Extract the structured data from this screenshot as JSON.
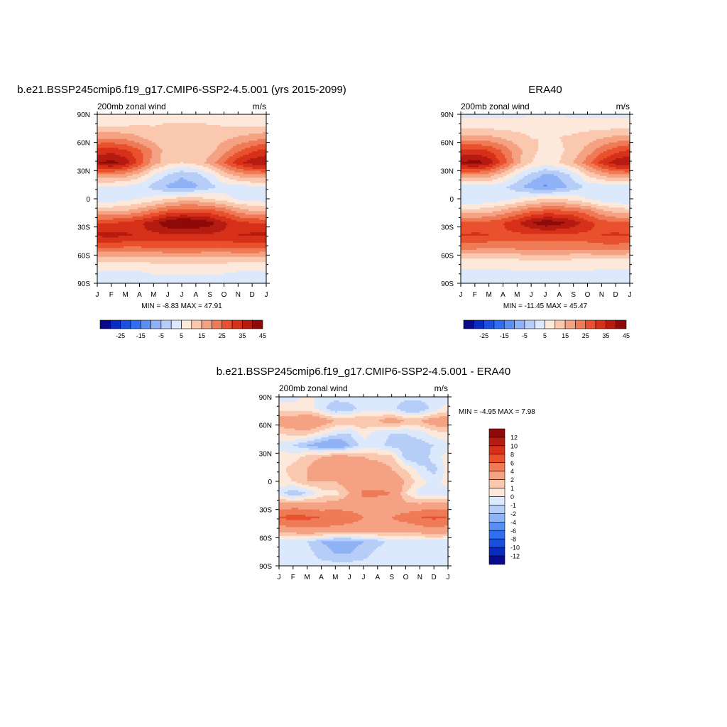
{
  "figure": {
    "panels": [
      {
        "id": "model",
        "title": "b.e21.BSSP245cmip6.f19_g17.CMIP6-SSP2-4.5.001 (yrs 2015-2099)",
        "left_label": "200mb zonal wind",
        "units": "m/s",
        "min_max": "MIN =  -8.83 MAX =  47.91",
        "colorbar_labels": [
          "-25",
          "-15",
          "-5",
          "5",
          "15",
          "25",
          "35",
          "45"
        ]
      },
      {
        "id": "obs",
        "title": "ERA40",
        "left_label": "200mb zonal wind",
        "units": "m/s",
        "min_max": "MIN = -11.45 MAX =  45.47",
        "colorbar_labels": [
          "-25",
          "-15",
          "-5",
          "5",
          "15",
          "25",
          "35",
          "45"
        ]
      },
      {
        "id": "diff",
        "title": "b.e21.BSSP245cmip6.f19_g17.CMIP6-SSP2-4.5.001 - ERA40",
        "left_label": "200mb zonal wind",
        "units": "m/s",
        "min_max": "MIN =  -4.95 MAX =   7.98",
        "colorbar_labels": [
          "12",
          "10",
          "8",
          "6",
          "4",
          "2",
          "1",
          "0",
          "-1",
          "-2",
          "-4",
          "-6",
          "-8",
          "-10",
          "-12"
        ]
      }
    ],
    "x_ticks": [
      "J",
      "F",
      "M",
      "A",
      "M",
      "J",
      "J",
      "A",
      "S",
      "O",
      "N",
      "D",
      "J"
    ],
    "y_ticks": [
      "90N",
      "60N",
      "30N",
      "0",
      "30S",
      "60S",
      "90S"
    ]
  },
  "chart_data": [
    {
      "type": "heatmap",
      "title": "b.e21.BSSP245cmip6.f19_g17.CMIP6-SSP2-4.5.001 (yrs 2015-2099)",
      "variable": "200mb zonal wind",
      "units": "m/s",
      "x": [
        "J",
        "F",
        "M",
        "A",
        "M",
        "J",
        "J",
        "A",
        "S",
        "O",
        "N",
        "D",
        "J"
      ],
      "y": [
        90,
        60,
        30,
        0,
        -30,
        -60,
        -90
      ],
      "contour_levels": [
        -30,
        -25,
        -20,
        -15,
        -10,
        -5,
        0,
        5,
        10,
        15,
        20,
        25,
        30,
        35,
        40,
        45
      ],
      "min": -8.83,
      "max": 47.91,
      "colors": [
        "#0a0a8c",
        "#0a2bbf",
        "#1a4fe0",
        "#2f6ef0",
        "#5a8ff2",
        "#8fb2f5",
        "#b6cdf8",
        "#dce8fb",
        "#fde9dc",
        "#f9c8ae",
        "#f4a283",
        "#ef7a56",
        "#e9502d",
        "#d73019",
        "#b51b10",
        "#8e0a08"
      ],
      "field": [
        [
          5,
          5,
          5,
          5,
          5,
          5,
          5,
          5,
          5,
          5,
          5,
          5,
          5
        ],
        [
          10,
          10,
          10,
          11,
          10,
          12,
          12,
          12,
          11,
          10,
          10,
          10,
          10
        ],
        [
          20,
          20,
          19,
          16,
          13,
          11,
          11,
          11,
          12,
          14,
          16,
          18,
          20
        ],
        [
          32,
          33,
          31,
          26,
          19,
          12,
          10,
          10,
          13,
          18,
          24,
          29,
          32
        ],
        [
          40,
          42,
          38,
          28,
          18,
          12,
          10,
          12,
          17,
          25,
          33,
          38,
          40
        ],
        [
          20,
          20,
          18,
          13,
          5,
          0,
          -4,
          -2,
          3,
          12,
          17,
          20,
          20
        ],
        [
          4,
          4,
          4,
          2,
          -2,
          -6,
          -8,
          -6,
          -2,
          2,
          3,
          4,
          4
        ],
        [
          2,
          2,
          3,
          5,
          7,
          10,
          12,
          12,
          10,
          7,
          4,
          3,
          2
        ],
        [
          14,
          14,
          15,
          18,
          22,
          26,
          28,
          28,
          27,
          24,
          18,
          15,
          14
        ],
        [
          30,
          30,
          31,
          34,
          38,
          44,
          47,
          45,
          42,
          36,
          32,
          30,
          30
        ],
        [
          36,
          37,
          36,
          34,
          34,
          34,
          34,
          34,
          34,
          34,
          35,
          36,
          36
        ],
        [
          26,
          26,
          25,
          25,
          26,
          26,
          26,
          26,
          26,
          26,
          27,
          27,
          26
        ],
        [
          12,
          12,
          12,
          12,
          12,
          13,
          13,
          13,
          12,
          12,
          12,
          12,
          12
        ],
        [
          5,
          5,
          5,
          5,
          6,
          6,
          6,
          6,
          6,
          6,
          5,
          5,
          5
        ],
        [
          2,
          2,
          2,
          2,
          2,
          2,
          2,
          2,
          1,
          1,
          2,
          2,
          2
        ]
      ]
    },
    {
      "type": "heatmap",
      "title": "ERA40",
      "variable": "200mb zonal wind",
      "units": "m/s",
      "x": [
        "J",
        "F",
        "M",
        "A",
        "M",
        "J",
        "J",
        "A",
        "S",
        "O",
        "N",
        "D",
        "J"
      ],
      "y": [
        90,
        60,
        30,
        0,
        -30,
        -60,
        -90
      ],
      "contour_levels": [
        -30,
        -25,
        -20,
        -15,
        -10,
        -5,
        0,
        5,
        10,
        15,
        20,
        25,
        30,
        35,
        40,
        45
      ],
      "min": -11.45,
      "max": 45.47,
      "colors": [
        "#0a0a8c",
        "#0a2bbf",
        "#1a4fe0",
        "#2f6ef0",
        "#5a8ff2",
        "#8fb2f5",
        "#b6cdf8",
        "#dce8fb",
        "#fde9dc",
        "#f9c8ae",
        "#f4a283",
        "#ef7a56",
        "#e9502d",
        "#d73019",
        "#b51b10",
        "#8e0a08"
      ],
      "field": [
        [
          4,
          4,
          4,
          4,
          4,
          4,
          4,
          4,
          4,
          4,
          4,
          4,
          4
        ],
        [
          8,
          8,
          8,
          8,
          8,
          9,
          9,
          9,
          8,
          8,
          8,
          8,
          8
        ],
        [
          18,
          18,
          17,
          15,
          12,
          10,
          10,
          10,
          11,
          13,
          15,
          17,
          18
        ],
        [
          31,
          32,
          30,
          24,
          17,
          11,
          9,
          9,
          12,
          17,
          23,
          28,
          31
        ],
        [
          40,
          43,
          38,
          28,
          17,
          10,
          8,
          10,
          15,
          23,
          32,
          38,
          40
        ],
        [
          20,
          20,
          18,
          12,
          4,
          -1,
          -6,
          -4,
          2,
          11,
          16,
          20,
          20
        ],
        [
          3,
          3,
          3,
          1,
          -3,
          -8,
          -11,
          -8,
          -3,
          1,
          2,
          3,
          3
        ],
        [
          0,
          0,
          1,
          3,
          5,
          8,
          10,
          10,
          8,
          5,
          2,
          1,
          0
        ],
        [
          12,
          12,
          13,
          16,
          20,
          24,
          26,
          26,
          25,
          22,
          16,
          13,
          12
        ],
        [
          26,
          26,
          27,
          30,
          34,
          40,
          44,
          42,
          38,
          32,
          28,
          26,
          26
        ],
        [
          30,
          31,
          30,
          29,
          29,
          29,
          29,
          29,
          29,
          29,
          30,
          31,
          30
        ],
        [
          22,
          22,
          21,
          21,
          22,
          22,
          22,
          22,
          22,
          22,
          23,
          23,
          22
        ],
        [
          10,
          10,
          10,
          10,
          10,
          11,
          11,
          11,
          10,
          10,
          10,
          10,
          10
        ],
        [
          4,
          4,
          4,
          4,
          5,
          5,
          5,
          5,
          5,
          5,
          4,
          4,
          4
        ],
        [
          1,
          1,
          1,
          1,
          1,
          1,
          1,
          1,
          1,
          1,
          1,
          1,
          1
        ]
      ]
    },
    {
      "type": "heatmap",
      "title": "b.e21.BSSP245cmip6.f19_g17.CMIP6-SSP2-4.5.001 - ERA40",
      "variable": "200mb zonal wind",
      "units": "m/s",
      "x": [
        "J",
        "F",
        "M",
        "A",
        "M",
        "J",
        "J",
        "A",
        "S",
        "O",
        "N",
        "D",
        "J"
      ],
      "y": [
        90,
        60,
        30,
        0,
        -30,
        -60,
        -90
      ],
      "contour_levels": [
        -12,
        -10,
        -8,
        -6,
        -4,
        -2,
        -1,
        0,
        1,
        2,
        4,
        6,
        8,
        10,
        12
      ],
      "min": -4.95,
      "max": 7.98,
      "colors": [
        "#0a0a8c",
        "#0a2bbf",
        "#1a4fe0",
        "#2f6ef0",
        "#5a8ff2",
        "#8fb2f5",
        "#b6cdf8",
        "#dce8fb",
        "#fde9dc",
        "#f9c8ae",
        "#f4a283",
        "#ef7a56",
        "#e9502d",
        "#d73019",
        "#b51b10",
        "#8e0a08"
      ],
      "field": [
        [
          -0.5,
          -0.5,
          0.5,
          -0.5,
          -0.5,
          -0.5,
          -0.5,
          -0.5,
          -0.5,
          -0.5,
          -0.5,
          -0.5,
          -0.5
        ],
        [
          0.5,
          0.5,
          0.5,
          -0.5,
          -2,
          -1.5,
          -0.5,
          -0.5,
          -0.5,
          -2,
          -2,
          -0.5,
          0.5
        ],
        [
          3,
          3,
          4,
          3,
          2,
          2,
          2,
          2,
          3,
          2,
          2,
          3,
          3
        ],
        [
          1,
          1.5,
          1.5,
          0.5,
          -0.5,
          -1,
          0.5,
          -0.5,
          -1,
          -1,
          -0.5,
          0.5,
          1
        ],
        [
          -0.5,
          -1,
          -2,
          -3,
          -4,
          -2,
          -0.5,
          -0.5,
          -1.5,
          -1.5,
          -1.5,
          -1,
          -0.5
        ],
        [
          0.5,
          0.5,
          1.5,
          2,
          3,
          2.5,
          2,
          1.5,
          1.5,
          -1.5,
          -2,
          -0.5,
          0.5
        ],
        [
          0.5,
          1.5,
          2,
          3,
          3.5,
          3,
          3,
          3,
          2,
          1,
          -0.5,
          -1.5,
          0.5
        ],
        [
          0.5,
          1,
          2,
          2,
          2,
          3,
          3,
          3,
          3,
          2,
          0.5,
          -0.5,
          0.5
        ],
        [
          -0.5,
          -2,
          -1,
          0.5,
          0.5,
          2,
          4.5,
          4.5,
          4,
          1,
          -0.5,
          -0.5,
          -0.5
        ],
        [
          3,
          3,
          3,
          2.5,
          3,
          3,
          3,
          2.5,
          2.5,
          2.5,
          2.5,
          3,
          3
        ],
        [
          6,
          7,
          6.5,
          6,
          6,
          5,
          4,
          4,
          4,
          5,
          6,
          6.5,
          6
        ],
        [
          3,
          3,
          3.5,
          3.5,
          3,
          3,
          3,
          3,
          3,
          2.5,
          3,
          3.5,
          3
        ],
        [
          -0.5,
          -0.5,
          -1,
          -2,
          -2.5,
          -2.5,
          -2,
          -1.5,
          -0.5,
          -0.5,
          -0.5,
          -0.5,
          -0.5
        ],
        [
          -0.5,
          -0.5,
          -0.5,
          -1.5,
          -2,
          -2,
          -1.5,
          -0.5,
          -0.5,
          -0.5,
          -0.5,
          -0.5,
          -0.5
        ],
        [
          -0.5,
          -0.5,
          -0.5,
          -0.5,
          -0.5,
          -0.5,
          -0.5,
          -0.5,
          -0.5,
          -0.5,
          -0.5,
          -0.5,
          -0.5
        ]
      ]
    }
  ]
}
